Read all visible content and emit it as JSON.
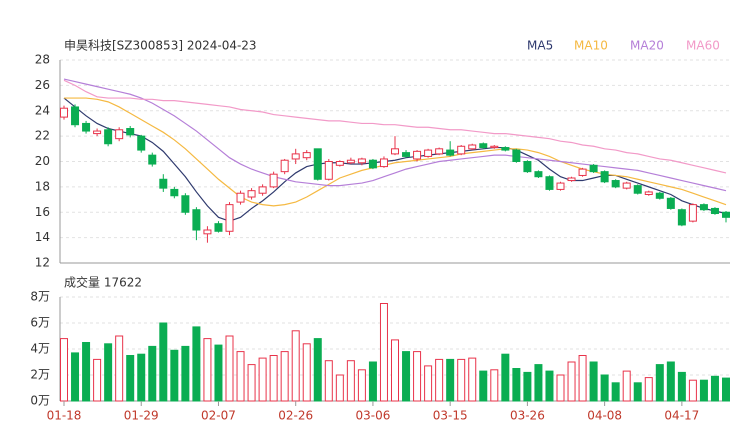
{
  "chart_data": [
    {
      "type": "candlestick",
      "title": "申昊科技[SZ300853] 2024-04-23",
      "ylim": [
        12,
        28
      ],
      "yticks": [
        12,
        14,
        16,
        18,
        20,
        22,
        24,
        26,
        28
      ],
      "grid": true,
      "up_color": "#e8334a",
      "down_color": "#0aad52",
      "ohlc": [
        [
          23.5,
          24.4,
          23.3,
          24.2
        ],
        [
          24.3,
          24.5,
          22.7,
          22.9
        ],
        [
          23,
          23.2,
          22.2,
          22.4
        ],
        [
          22.2,
          22.6,
          22,
          22.4
        ],
        [
          22.5,
          22.7,
          21.2,
          21.4
        ],
        [
          21.8,
          22.7,
          21.6,
          22.5
        ],
        [
          22.6,
          22.8,
          21.9,
          22.1
        ],
        [
          22,
          22.1,
          20.7,
          20.9
        ],
        [
          20.5,
          20.7,
          19.6,
          19.8
        ],
        [
          18.6,
          19,
          17.6,
          17.9
        ],
        [
          17.8,
          18,
          17.1,
          17.3
        ],
        [
          17.3,
          17.5,
          15.8,
          16
        ],
        [
          16.2,
          16.4,
          13.8,
          14.6
        ],
        [
          14.3,
          14.9,
          13.6,
          14.6
        ],
        [
          15.1,
          15.3,
          14.4,
          14.5
        ],
        [
          14.5,
          16.8,
          14.2,
          16.6
        ],
        [
          16.8,
          17.7,
          16.6,
          17.5
        ],
        [
          17.2,
          17.9,
          17,
          17.7
        ],
        [
          17.5,
          18.2,
          17.3,
          18
        ],
        [
          18,
          19.2,
          17.9,
          19
        ],
        [
          19.2,
          20.2,
          19,
          20.1
        ],
        [
          20.2,
          21,
          19.8,
          20.6
        ],
        [
          20.3,
          20.9,
          20.1,
          20.7
        ],
        [
          21,
          21,
          18.5,
          18.6
        ],
        [
          18.6,
          20.2,
          18.5,
          20
        ],
        [
          19.7,
          20.1,
          19.6,
          20
        ],
        [
          19.9,
          20.3,
          19.8,
          20.1
        ],
        [
          19.9,
          20.3,
          19.7,
          20.2
        ],
        [
          20.1,
          20.2,
          19.4,
          19.5
        ],
        [
          19.6,
          20.4,
          19.5,
          20.2
        ],
        [
          20.6,
          22,
          20.5,
          21
        ],
        [
          20.7,
          20.9,
          20.3,
          20.4
        ],
        [
          20.2,
          20.9,
          20,
          20.8
        ],
        [
          20.4,
          21,
          20.3,
          20.9
        ],
        [
          20.6,
          21.1,
          20.5,
          21
        ],
        [
          20.9,
          21.6,
          20.4,
          20.5
        ],
        [
          20.6,
          21.3,
          20.5,
          21.2
        ],
        [
          21,
          21.4,
          20.9,
          21.3
        ],
        [
          21.4,
          21.5,
          21,
          21.1
        ],
        [
          21.1,
          21.3,
          21,
          21.2
        ],
        [
          21.1,
          21.2,
          20.8,
          20.9
        ],
        [
          20.9,
          21,
          19.9,
          20
        ],
        [
          20,
          20.1,
          19.1,
          19.2
        ],
        [
          19.2,
          19.3,
          18.7,
          18.8
        ],
        [
          18.8,
          18.9,
          17.7,
          17.8
        ],
        [
          17.8,
          18.4,
          17.7,
          18.3
        ],
        [
          18.5,
          18.8,
          18.4,
          18.7
        ],
        [
          18.9,
          19.5,
          18.8,
          19.4
        ],
        [
          19.7,
          19.8,
          19.1,
          19.2
        ],
        [
          19.2,
          19.3,
          18.3,
          18.4
        ],
        [
          18.5,
          18.6,
          17.9,
          18
        ],
        [
          17.9,
          18.4,
          17.8,
          18.3
        ],
        [
          18.1,
          18.2,
          17.4,
          17.5
        ],
        [
          17.4,
          17.7,
          17.3,
          17.6
        ],
        [
          17.5,
          17.6,
          17,
          17.1
        ],
        [
          17.1,
          17.2,
          16.2,
          16.3
        ],
        [
          16.2,
          16.3,
          14.9,
          15
        ],
        [
          15.3,
          16.7,
          15.2,
          16.6
        ],
        [
          16.6,
          16.7,
          16.1,
          16.2
        ],
        [
          16.3,
          16.4,
          15.8,
          15.9
        ],
        [
          16,
          16.1,
          15.2,
          15.6
        ]
      ],
      "series": [
        {
          "name": "MA5",
          "color": "#2f3a6e",
          "values": [
            25,
            24.3,
            23.6,
            23,
            22.6,
            22.4,
            22.2,
            22,
            21.5,
            20.8,
            19.8,
            18.8,
            17.6,
            16.5,
            15.6,
            15.3,
            15.6,
            16.3,
            16.9,
            17.6,
            18.4,
            19.1,
            19.6,
            19.8,
            19.9,
            19.9,
            19.8,
            19.8,
            19.9,
            20,
            20.1,
            20.3,
            20.4,
            20.5,
            20.6,
            20.7,
            20.8,
            20.9,
            21,
            21.1,
            21.1,
            20.9,
            20.5,
            20.1,
            19.4,
            18.8,
            18.5,
            18.5,
            18.7,
            18.9,
            18.9,
            18.6,
            18.3,
            18,
            17.7,
            17.4,
            16.9,
            16.6,
            16.3,
            16.1,
            15.9
          ]
        },
        {
          "name": "MA10",
          "color": "#f5b942",
          "values": [
            25,
            25,
            25,
            24.9,
            24.7,
            24.3,
            23.8,
            23.3,
            22.8,
            22.3,
            21.7,
            21,
            20.2,
            19.4,
            18.6,
            17.9,
            17.2,
            16.8,
            16.6,
            16.5,
            16.6,
            16.8,
            17.2,
            17.7,
            18.2,
            18.7,
            19,
            19.3,
            19.5,
            19.7,
            19.9,
            20,
            20.1,
            20.2,
            20.3,
            20.4,
            20.6,
            20.7,
            20.8,
            20.9,
            21,
            21,
            20.9,
            20.7,
            20.4,
            20,
            19.7,
            19.4,
            19.2,
            19,
            18.9,
            18.8,
            18.6,
            18.4,
            18.2,
            18,
            17.8,
            17.5,
            17.2,
            16.9,
            16.6
          ]
        },
        {
          "name": "MA20",
          "color": "#b57fd8",
          "values": [
            26.5,
            26.3,
            26.1,
            25.9,
            25.7,
            25.5,
            25.3,
            25,
            24.6,
            24.1,
            23.6,
            23,
            22.4,
            21.7,
            21,
            20.3,
            19.8,
            19.4,
            19.1,
            18.8,
            18.6,
            18.4,
            18.3,
            18.2,
            18.1,
            18.1,
            18.2,
            18.3,
            18.5,
            18.8,
            19.1,
            19.4,
            19.6,
            19.8,
            20,
            20.1,
            20.2,
            20.3,
            20.4,
            20.5,
            20.5,
            20.4,
            20.3,
            20.2,
            20.1,
            20,
            19.9,
            19.8,
            19.7,
            19.6,
            19.5,
            19.4,
            19.3,
            19.1,
            18.9,
            18.7,
            18.5,
            18.3,
            18.1,
            17.9,
            17.7
          ]
        },
        {
          "name": "MA60",
          "color": "#f29ac8",
          "values": [
            26.4,
            26,
            25.5,
            25.1,
            25,
            25,
            25,
            24.9,
            24.9,
            24.8,
            24.8,
            24.7,
            24.6,
            24.5,
            24.4,
            24.3,
            24.1,
            24,
            23.9,
            23.7,
            23.6,
            23.5,
            23.4,
            23.3,
            23.2,
            23.2,
            23.1,
            23,
            23,
            22.9,
            22.9,
            22.8,
            22.7,
            22.7,
            22.6,
            22.5,
            22.5,
            22.4,
            22.3,
            22.2,
            22.2,
            22.1,
            22,
            21.9,
            21.8,
            21.6,
            21.5,
            21.3,
            21.2,
            21,
            20.9,
            20.7,
            20.6,
            20.4,
            20.2,
            20.1,
            19.9,
            19.7,
            19.5,
            19.3,
            19.1
          ]
        }
      ]
    },
    {
      "type": "volume",
      "title": "成交量 17622",
      "ylim": [
        0,
        8
      ],
      "yticks": [
        {
          "value": 0,
          "label": "0万"
        },
        {
          "value": 2,
          "label": "2万"
        },
        {
          "value": 4,
          "label": "4万"
        },
        {
          "value": 6,
          "label": "6万"
        },
        {
          "value": 8,
          "label": "8万"
        }
      ],
      "grid": true,
      "categories": [
        "01-18",
        null,
        null,
        null,
        null,
        null,
        null,
        "01-29",
        null,
        null,
        null,
        null,
        null,
        null,
        "02-07",
        null,
        null,
        null,
        null,
        null,
        null,
        "02-26",
        null,
        null,
        null,
        null,
        null,
        null,
        "03-06",
        null,
        null,
        null,
        null,
        null,
        null,
        "03-15",
        null,
        null,
        null,
        null,
        null,
        null,
        "03-26",
        null,
        null,
        null,
        null,
        null,
        null,
        "04-08",
        null,
        null,
        null,
        null,
        null,
        null,
        "04-17",
        null,
        null,
        null,
        null
      ],
      "values": [
        4.8,
        3.7,
        4.5,
        3.2,
        4.4,
        5,
        3.5,
        3.6,
        4.2,
        6,
        3.9,
        4.2,
        5.7,
        4.8,
        4.3,
        5,
        3.8,
        2.8,
        3.3,
        3.5,
        3.8,
        5.4,
        4.4,
        4.8,
        3.1,
        2,
        3.1,
        2.4,
        3,
        7.5,
        4.7,
        3.8,
        3.8,
        2.7,
        3.2,
        3.2,
        3.2,
        3.3,
        2.3,
        2.4,
        3.6,
        2.5,
        2.2,
        2.8,
        2.3,
        2,
        3,
        3.5,
        3,
        2,
        1.4,
        2.3,
        1.4,
        1.8,
        2.8,
        3,
        2.2,
        1.6,
        1.6,
        1.9,
        1.7622
      ]
    }
  ]
}
